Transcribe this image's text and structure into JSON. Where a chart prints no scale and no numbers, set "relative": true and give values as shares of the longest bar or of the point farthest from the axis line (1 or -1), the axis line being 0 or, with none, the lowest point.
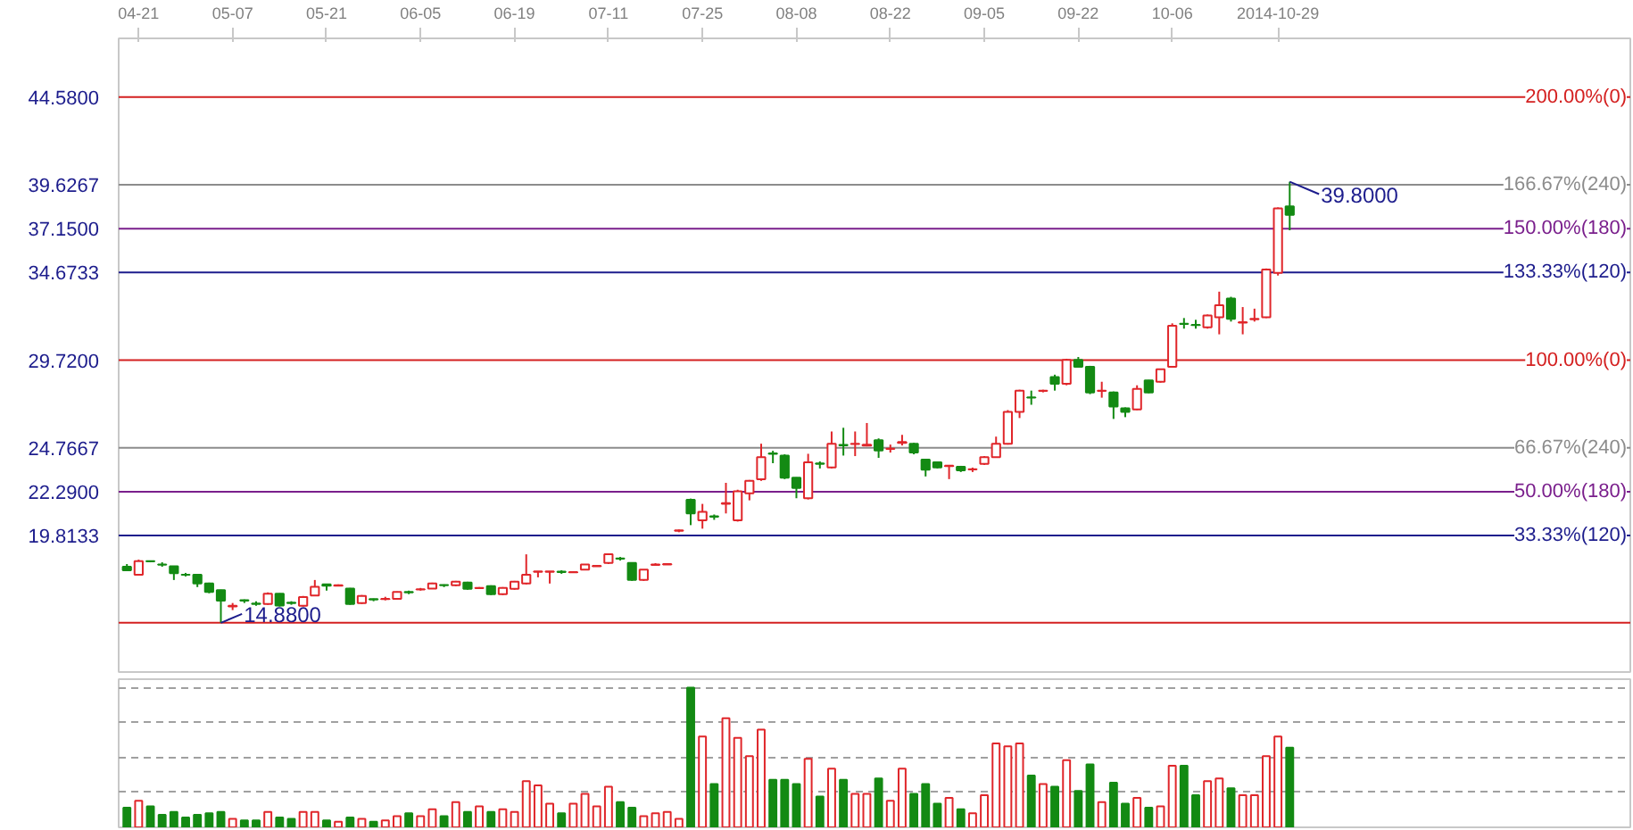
{
  "chart_data": [
    {
      "type": "candlestick",
      "categories": [
        null,
        "04-21",
        null,
        null,
        null,
        null,
        null,
        null,
        null,
        "05-07",
        null,
        null,
        null,
        null,
        null,
        null,
        null,
        "05-21",
        null,
        null,
        null,
        null,
        null,
        null,
        null,
        "06-05",
        null,
        null,
        null,
        null,
        null,
        null,
        null,
        "06-19",
        null,
        null,
        null,
        null,
        null,
        null,
        null,
        "07-11",
        null,
        null,
        null,
        null,
        null,
        null,
        null,
        "07-25",
        null,
        null,
        null,
        null,
        null,
        null,
        null,
        "08-08",
        null,
        null,
        null,
        null,
        null,
        null,
        null,
        "08-22",
        null,
        null,
        null,
        null,
        null,
        null,
        null,
        "09-05",
        null,
        null,
        null,
        null,
        null,
        null,
        null,
        "09-22",
        null,
        null,
        null,
        null,
        null,
        null,
        null,
        "10-06",
        null,
        null,
        null,
        null,
        null,
        null,
        null,
        null,
        "2014-10-29",
        null
      ],
      "ohlc": [
        [
          18.05,
          18.2,
          17.8,
          17.85
        ],
        [
          17.6,
          18.45,
          17.55,
          18.36
        ],
        [
          18.37,
          18.4,
          18.3,
          18.35
        ],
        [
          18.18,
          18.3,
          18.05,
          18.16
        ],
        [
          18.07,
          18.1,
          17.3,
          17.68
        ],
        [
          17.6,
          17.7,
          17.5,
          17.59
        ],
        [
          17.59,
          17.6,
          16.9,
          17.11
        ],
        [
          17.11,
          17.15,
          16.55,
          16.62
        ],
        [
          16.72,
          16.75,
          14.88,
          16.14
        ],
        [
          15.8,
          16.0,
          15.6,
          15.85
        ],
        [
          16.16,
          16.2,
          16.0,
          16.14
        ],
        [
          15.97,
          16.1,
          15.85,
          15.95
        ],
        [
          15.95,
          16.6,
          15.9,
          16.53
        ],
        [
          16.53,
          16.55,
          15.8,
          15.86
        ],
        [
          16.02,
          16.1,
          15.9,
          16.0
        ],
        [
          15.85,
          16.4,
          15.8,
          16.34
        ],
        [
          16.43,
          17.3,
          16.4,
          16.91
        ],
        [
          17.05,
          17.06,
          16.7,
          16.98
        ],
        [
          16.98,
          17.05,
          16.95,
          17.0
        ],
        [
          16.82,
          16.85,
          15.9,
          15.95
        ],
        [
          16.0,
          16.45,
          15.95,
          16.4
        ],
        [
          16.22,
          16.25,
          16.1,
          16.2
        ],
        [
          16.22,
          16.35,
          16.15,
          16.24
        ],
        [
          16.24,
          16.65,
          16.2,
          16.62
        ],
        [
          16.62,
          16.7,
          16.5,
          16.6
        ],
        [
          16.76,
          16.85,
          16.7,
          16.78
        ],
        [
          16.82,
          17.15,
          16.8,
          17.1
        ],
        [
          17.02,
          17.05,
          16.9,
          17.0
        ],
        [
          17.0,
          17.25,
          16.95,
          17.2
        ],
        [
          17.15,
          17.2,
          16.75,
          16.8
        ],
        [
          16.84,
          16.9,
          16.8,
          16.85
        ],
        [
          16.95,
          17.0,
          16.45,
          16.5
        ],
        [
          16.5,
          16.9,
          16.45,
          16.85
        ],
        [
          16.8,
          17.25,
          16.75,
          17.2
        ],
        [
          17.11,
          18.75,
          17.05,
          17.59
        ],
        [
          17.76,
          17.8,
          17.45,
          17.78
        ],
        [
          17.76,
          17.8,
          17.1,
          17.78
        ],
        [
          17.77,
          17.85,
          17.65,
          17.75
        ],
        [
          17.74,
          17.8,
          17.7,
          17.75
        ],
        [
          17.88,
          18.2,
          17.85,
          18.17
        ],
        [
          18.08,
          18.15,
          18.05,
          18.1
        ],
        [
          18.26,
          18.8,
          18.2,
          18.75
        ],
        [
          18.52,
          18.6,
          18.4,
          18.5
        ],
        [
          18.26,
          18.3,
          17.25,
          17.3
        ],
        [
          17.3,
          17.9,
          17.25,
          17.88
        ],
        [
          18.15,
          18.25,
          18.1,
          18.17
        ],
        [
          18.18,
          18.25,
          18.15,
          18.2
        ],
        [
          20.08,
          20.15,
          20.0,
          20.1
        ],
        [
          21.83,
          21.9,
          20.4,
          21.06
        ],
        [
          20.67,
          21.6,
          20.2,
          21.15
        ],
        [
          20.9,
          21.0,
          20.7,
          20.87
        ],
        [
          21.6,
          22.79,
          21.06,
          21.64
        ],
        [
          20.67,
          22.4,
          20.6,
          22.31
        ],
        [
          22.2,
          22.95,
          21.8,
          22.9
        ],
        [
          22.99,
          25.0,
          22.9,
          24.24
        ],
        [
          24.45,
          24.6,
          23.9,
          24.43
        ],
        [
          24.33,
          24.4,
          23.0,
          23.08
        ],
        [
          23.08,
          23.1,
          21.92,
          22.5
        ],
        [
          21.92,
          24.43,
          21.85,
          23.95
        ],
        [
          23.88,
          24.0,
          23.6,
          23.86
        ],
        [
          23.66,
          25.69,
          23.6,
          25.0
        ],
        [
          24.93,
          25.9,
          24.33,
          24.91
        ],
        [
          24.98,
          25.69,
          24.3,
          25.0
        ],
        [
          24.9,
          26.17,
          24.85,
          24.95
        ],
        [
          25.2,
          25.3,
          24.2,
          24.62
        ],
        [
          24.7,
          24.95,
          24.5,
          24.72
        ],
        [
          25.05,
          25.5,
          24.9,
          25.1
        ],
        [
          25.0,
          25.05,
          24.4,
          24.5
        ],
        [
          24.1,
          24.15,
          23.15,
          23.53
        ],
        [
          23.95,
          24.0,
          23.6,
          23.66
        ],
        [
          23.74,
          23.8,
          23.0,
          23.76
        ],
        [
          23.7,
          23.75,
          23.4,
          23.5
        ],
        [
          23.54,
          23.65,
          23.4,
          23.56
        ],
        [
          23.86,
          24.3,
          23.8,
          24.24
        ],
        [
          24.24,
          25.4,
          24.2,
          25.0
        ],
        [
          25.0,
          26.9,
          24.95,
          26.8
        ],
        [
          26.8,
          28.05,
          26.45,
          28.0
        ],
        [
          27.62,
          28.0,
          27.2,
          27.6
        ],
        [
          27.98,
          28.05,
          27.9,
          28.0
        ],
        [
          28.77,
          28.9,
          28.0,
          28.39
        ],
        [
          28.39,
          29.8,
          28.3,
          29.73
        ],
        [
          29.73,
          29.9,
          29.3,
          29.35
        ],
        [
          29.35,
          29.4,
          27.8,
          27.9
        ],
        [
          27.98,
          28.5,
          27.6,
          28.0
        ],
        [
          27.9,
          27.95,
          26.4,
          27.1
        ],
        [
          27.0,
          27.05,
          26.5,
          26.8
        ],
        [
          26.94,
          28.3,
          26.9,
          28.1
        ],
        [
          28.58,
          28.6,
          27.85,
          27.9
        ],
        [
          28.5,
          29.2,
          28.45,
          29.2
        ],
        [
          29.35,
          31.8,
          29.3,
          31.66
        ],
        [
          31.78,
          32.1,
          31.5,
          31.76
        ],
        [
          31.72,
          32.0,
          31.5,
          31.7
        ],
        [
          31.57,
          32.3,
          31.5,
          32.24
        ],
        [
          32.14,
          33.59,
          31.18,
          32.82
        ],
        [
          33.2,
          33.3,
          31.9,
          32.05
        ],
        [
          31.84,
          32.72,
          31.18,
          31.86
        ],
        [
          32.03,
          32.63,
          31.9,
          32.05
        ],
        [
          32.14,
          34.9,
          32.1,
          34.84
        ],
        [
          34.65,
          38.35,
          34.5,
          38.3
        ],
        [
          38.41,
          39.8,
          37.06,
          37.93
        ]
      ],
      "colors": [
        "#138a13",
        "#e0262a",
        "#138a13",
        "#138a13",
        "#138a13",
        "#138a13",
        "#138a13",
        "#138a13",
        "#138a13",
        "#e0262a",
        "#138a13",
        "#138a13",
        "#e0262a",
        "#138a13",
        "#138a13",
        "#e0262a",
        "#e0262a",
        "#138a13",
        "#e0262a",
        "#138a13",
        "#e0262a",
        "#138a13",
        "#e0262a",
        "#e0262a",
        "#138a13",
        "#e0262a",
        "#e0262a",
        "#138a13",
        "#e0262a",
        "#138a13",
        "#e0262a",
        "#138a13",
        "#e0262a",
        "#e0262a",
        "#e0262a",
        "#e0262a",
        "#e0262a",
        "#138a13",
        "#e0262a",
        "#e0262a",
        "#e0262a",
        "#e0262a",
        "#138a13",
        "#138a13",
        "#e0262a",
        "#e0262a",
        "#e0262a",
        "#e0262a",
        "#138a13",
        "#e0262a",
        "#138a13",
        "#e0262a",
        "#e0262a",
        "#e0262a",
        "#e0262a",
        "#138a13",
        "#138a13",
        "#138a13",
        "#e0262a",
        "#138a13",
        "#e0262a",
        "#138a13",
        "#e0262a",
        "#e0262a",
        "#138a13",
        "#e0262a",
        "#e0262a",
        "#138a13",
        "#138a13",
        "#138a13",
        "#e0262a",
        "#138a13",
        "#e0262a",
        "#e0262a",
        "#e0262a",
        "#e0262a",
        "#e0262a",
        "#138a13",
        "#e0262a",
        "#138a13",
        "#e0262a",
        "#138a13",
        "#138a13",
        "#e0262a",
        "#138a13",
        "#138a13",
        "#e0262a",
        "#138a13",
        "#e0262a",
        "#e0262a",
        "#138a13",
        "#138a13",
        "#e0262a",
        "#e0262a",
        "#138a13",
        "#e0262a",
        "#e0262a",
        "#e0262a",
        "#e0262a",
        "#138a13"
      ],
      "ylim": [
        12.1,
        47.9
      ],
      "yticks": [
        {
          "value": 44.58,
          "label": "44.5800"
        },
        {
          "value": 39.6267,
          "label": "39.6267"
        },
        {
          "value": 37.15,
          "label": "37.1500"
        },
        {
          "value": 34.6733,
          "label": "34.6733"
        },
        {
          "value": 29.72,
          "label": "29.7200"
        },
        {
          "value": 24.7667,
          "label": "24.7667"
        },
        {
          "value": 22.29,
          "label": "22.2900"
        },
        {
          "value": 19.8133,
          "label": "19.8133"
        }
      ],
      "ref_lines": [
        {
          "axis": "y",
          "value": 44.58,
          "color": "#d42020"
        },
        {
          "axis": "y",
          "value": 39.6267,
          "color": "#8c8c8c"
        },
        {
          "axis": "y",
          "value": 37.15,
          "color": "#7a1f8c"
        },
        {
          "axis": "y",
          "value": 34.6733,
          "color": "#1c1c8c"
        },
        {
          "axis": "y",
          "value": 29.72,
          "color": "#d42020"
        },
        {
          "axis": "y",
          "value": 24.7667,
          "color": "#8c8c8c"
        },
        {
          "axis": "y",
          "value": 22.29,
          "color": "#7a1f8c"
        },
        {
          "axis": "y",
          "value": 19.8133,
          "color": "#1c1c8c"
        },
        {
          "axis": "y",
          "value": 14.88,
          "color": "#d42020"
        }
      ],
      "annotations": [
        {
          "text": "14.8800",
          "y": 14.88
        },
        {
          "text": "39.8000",
          "y": 39.8
        },
        {
          "text": "200.00%(0)",
          "y": 44.58
        },
        {
          "text": "166.67%(240)",
          "y": 39.6267
        },
        {
          "text": "150.00%(180)",
          "y": 37.15
        },
        {
          "text": "133.33%(120)",
          "y": 34.6733
        },
        {
          "text": "100.00%(0)",
          "y": 29.72
        },
        {
          "text": "66.67%(240)",
          "y": 24.7667
        },
        {
          "text": "50.00%(180)",
          "y": 22.29
        },
        {
          "text": "33.33%(120)",
          "y": 19.8133
        }
      ]
    },
    {
      "type": "bar",
      "relative": true,
      "tick_labels": false,
      "grid": "y",
      "categories": [
        null,
        null,
        null,
        null,
        null,
        null,
        null,
        null,
        null,
        null,
        null,
        null,
        null,
        null,
        null,
        null,
        null,
        null,
        null,
        null,
        null,
        null,
        null,
        null,
        null,
        null,
        null,
        null,
        null,
        null,
        null,
        null,
        null,
        null,
        null,
        null,
        null,
        null,
        null,
        null,
        null,
        null,
        null,
        null,
        null,
        null,
        null,
        null,
        null,
        null,
        null,
        null,
        null,
        null,
        null,
        null,
        null,
        null,
        null,
        null,
        null,
        null,
        null,
        null,
        null,
        null,
        null,
        null,
        null,
        null,
        null,
        null,
        null,
        null,
        null,
        null,
        null,
        null,
        null,
        null,
        null,
        null,
        null,
        null,
        null,
        null,
        null,
        null,
        null,
        null,
        null,
        null,
        null,
        null,
        null,
        null,
        null,
        null,
        null,
        null
      ],
      "values": [
        0.14,
        0.19,
        0.15,
        0.09,
        0.11,
        0.07,
        0.09,
        0.1,
        0.11,
        0.06,
        0.05,
        0.05,
        0.11,
        0.07,
        0.06,
        0.11,
        0.11,
        0.05,
        0.04,
        0.07,
        0.06,
        0.04,
        0.05,
        0.08,
        0.1,
        0.08,
        0.13,
        0.08,
        0.18,
        0.11,
        0.15,
        0.11,
        0.13,
        0.11,
        0.33,
        0.3,
        0.17,
        0.1,
        0.17,
        0.24,
        0.15,
        0.29,
        0.18,
        0.14,
        0.08,
        0.1,
        0.11,
        0.06,
        1,
        0.65,
        0.31,
        0.78,
        0.64,
        0.51,
        0.7,
        0.34,
        0.34,
        0.31,
        0.49,
        0.22,
        0.42,
        0.34,
        0.24,
        0.24,
        0.35,
        0.19,
        0.42,
        0.24,
        0.31,
        0.17,
        0.21,
        0.13,
        0.1,
        0.23,
        0.6,
        0.58,
        0.6,
        0.37,
        0.31,
        0.29,
        0.48,
        0.26,
        0.45,
        0.18,
        0.32,
        0.17,
        0.21,
        0.14,
        0.15,
        0.44,
        0.44,
        0.23,
        0.33,
        0.35,
        0.28,
        0.23,
        0.23,
        0.51,
        0.65,
        0.57
      ],
      "colors": [
        "#138a13",
        "#e0262a",
        "#138a13",
        "#138a13",
        "#138a13",
        "#138a13",
        "#138a13",
        "#138a13",
        "#138a13",
        "#e0262a",
        "#138a13",
        "#138a13",
        "#e0262a",
        "#138a13",
        "#138a13",
        "#e0262a",
        "#e0262a",
        "#138a13",
        "#e0262a",
        "#138a13",
        "#e0262a",
        "#138a13",
        "#e0262a",
        "#e0262a",
        "#138a13",
        "#e0262a",
        "#e0262a",
        "#138a13",
        "#e0262a",
        "#138a13",
        "#e0262a",
        "#138a13",
        "#e0262a",
        "#e0262a",
        "#e0262a",
        "#e0262a",
        "#e0262a",
        "#138a13",
        "#e0262a",
        "#e0262a",
        "#e0262a",
        "#e0262a",
        "#138a13",
        "#138a13",
        "#e0262a",
        "#e0262a",
        "#e0262a",
        "#e0262a",
        "#138a13",
        "#e0262a",
        "#138a13",
        "#e0262a",
        "#e0262a",
        "#e0262a",
        "#e0262a",
        "#138a13",
        "#138a13",
        "#138a13",
        "#e0262a",
        "#138a13",
        "#e0262a",
        "#138a13",
        "#e0262a",
        "#e0262a",
        "#138a13",
        "#e0262a",
        "#e0262a",
        "#138a13",
        "#138a13",
        "#138a13",
        "#e0262a",
        "#138a13",
        "#e0262a",
        "#e0262a",
        "#e0262a",
        "#e0262a",
        "#e0262a",
        "#138a13",
        "#e0262a",
        "#138a13",
        "#e0262a",
        "#138a13",
        "#138a13",
        "#e0262a",
        "#138a13",
        "#138a13",
        "#e0262a",
        "#138a13",
        "#e0262a",
        "#e0262a",
        "#138a13",
        "#138a13",
        "#e0262a",
        "#e0262a",
        "#138a13",
        "#e0262a",
        "#e0262a",
        "#e0262a",
        "#e0262a",
        "#138a13"
      ]
    }
  ]
}
